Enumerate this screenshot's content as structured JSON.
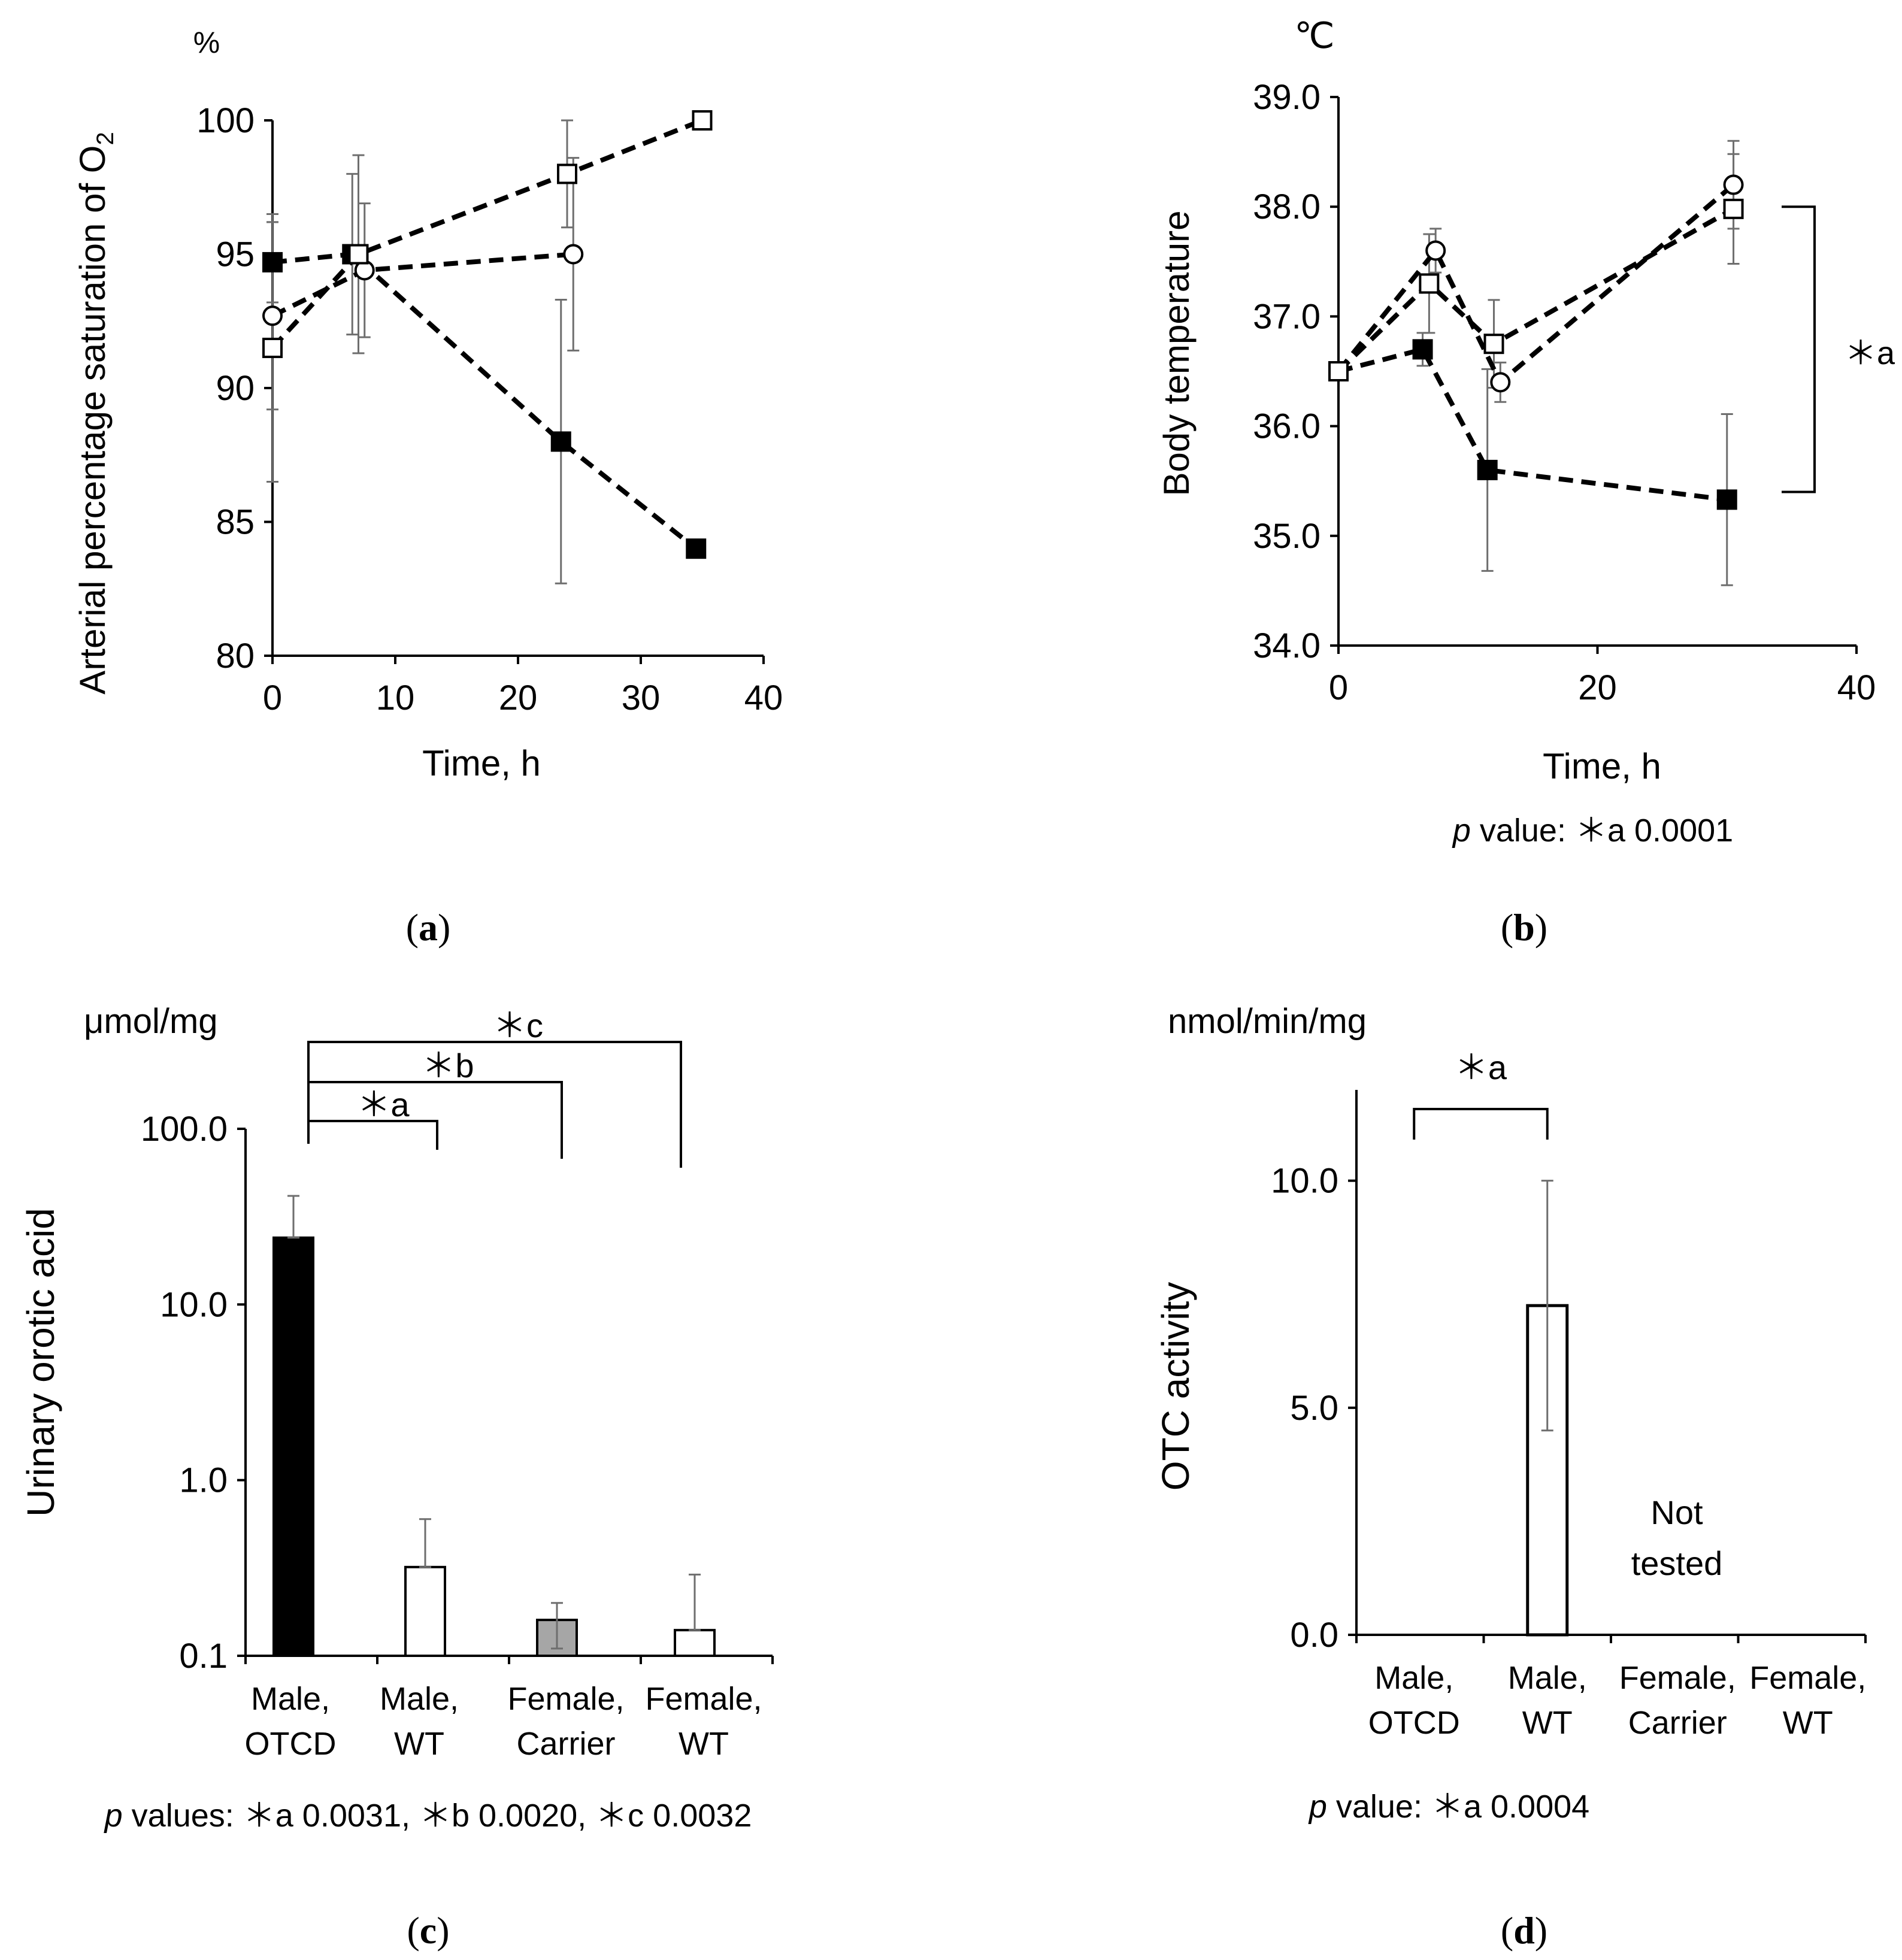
{
  "chart_data": [
    {
      "panel": "a",
      "type": "line",
      "unit": "%",
      "ylabel": "Arterial percentage saturation of O",
      "ylabel_subscript": "2",
      "xlabel": "Time, h",
      "xlim": [
        0,
        40
      ],
      "ylim": [
        80,
        100
      ],
      "xticks": [
        0,
        10,
        20,
        30,
        40
      ],
      "yticks": [
        80,
        85,
        90,
        95,
        100
      ],
      "series": [
        {
          "name": "filled-square",
          "marker": "square-filled",
          "x": [
            0,
            6.5,
            23.5,
            34.5
          ],
          "y": [
            94.7,
            95.0,
            88.0,
            84.0
          ],
          "err": [
            1.5,
            3.0,
            5.3,
            0
          ]
        },
        {
          "name": "open-circle",
          "marker": "circle-open",
          "x": [
            0,
            7.5,
            24.5
          ],
          "y": [
            92.7,
            94.4,
            95.0
          ],
          "err": [
            3.5,
            2.5,
            3.6
          ]
        },
        {
          "name": "open-square",
          "marker": "square-open",
          "x": [
            0,
            7,
            24,
            35
          ],
          "y": [
            91.5,
            95.0,
            98.0,
            100.0
          ],
          "err": [
            5.0,
            3.7,
            2.0,
            0
          ]
        }
      ],
      "caption": "(a)"
    },
    {
      "panel": "b",
      "type": "line",
      "unit": "℃",
      "ylabel": "Body temperature",
      "xlabel": "Time, h",
      "xlim": [
        0,
        40
      ],
      "ylim": [
        34.0,
        39.0
      ],
      "xticks": [
        0,
        20,
        40
      ],
      "yticks": [
        "34.0",
        "35.0",
        "36.0",
        "37.0",
        "38.0",
        "39.0"
      ],
      "series": [
        {
          "name": "filled-square",
          "marker": "square-filled",
          "x": [
            0,
            6.5,
            11.5,
            30
          ],
          "y": [
            36.5,
            36.7,
            35.6,
            35.33
          ],
          "err": [
            0,
            0.15,
            0.92,
            0.78
          ]
        },
        {
          "name": "open-circle",
          "marker": "circle-open",
          "x": [
            0,
            7.5,
            12.5,
            30.5
          ],
          "y": [
            36.5,
            37.6,
            36.4,
            38.2
          ],
          "err": [
            0,
            0.2,
            0.18,
            0.4
          ]
        },
        {
          "name": "open-square",
          "marker": "square-open",
          "x": [
            0,
            7,
            12,
            30.5
          ],
          "y": [
            36.5,
            37.3,
            36.75,
            37.98
          ],
          "err": [
            0,
            0.45,
            0.4,
            0.5
          ]
        }
      ],
      "annotation": "＊a",
      "pvalue_prefix": "p",
      "pvalue_text": " value: ＊a 0.0001",
      "caption": "(b)"
    },
    {
      "panel": "c",
      "type": "bar",
      "scale": "log",
      "unit": "μmol/mg",
      "ylabel": "Urinary orotic acid",
      "ylim": [
        0.1,
        100
      ],
      "yticks": [
        "0.1",
        "1.0",
        "10.0",
        "100.0"
      ],
      "categories": [
        [
          "Male,",
          "OTCD"
        ],
        [
          "Male,",
          "WT"
        ],
        [
          "Female,",
          "Carrier"
        ],
        [
          "Female,",
          "WT"
        ]
      ],
      "values": [
        24.0,
        0.32,
        0.16,
        0.14
      ],
      "err_upper": [
        41.5,
        0.6,
        0.2,
        0.29
      ],
      "err_lower": [
        null,
        null,
        0.11,
        null
      ],
      "fills": [
        "#000000",
        "#ffffff",
        "#a6a6a6",
        "#ffffff"
      ],
      "brackets": [
        "＊a",
        "＊b",
        "＊c"
      ],
      "pvalue_prefix": "p",
      "pvalue_text": " values: ＊a 0.0031, ＊b 0.0020, ＊c 0.0032",
      "caption": "(c)"
    },
    {
      "panel": "d",
      "type": "bar",
      "unit": "nmol/min/mg",
      "ylabel": "OTC activity",
      "ylim": [
        0,
        12
      ],
      "yticks": [
        "0.0",
        "5.0",
        "10.0"
      ],
      "categories": [
        [
          "Male,",
          "OTCD"
        ],
        [
          "Male,",
          "WT"
        ],
        [
          "Female,",
          "Carrier"
        ],
        [
          "Female,",
          "WT"
        ]
      ],
      "values": [
        0,
        7.25,
        null,
        null
      ],
      "err": [
        0,
        2.75,
        null,
        null
      ],
      "not_tested": [
        "Not",
        "tested"
      ],
      "brackets": [
        "＊a"
      ],
      "pvalue_prefix": "p",
      "pvalue_text": " value: ＊a 0.0004",
      "caption": "(d)"
    }
  ],
  "captions": {
    "a_open": "(",
    "a_letter": "a",
    "a_close": ")",
    "b_open": "(",
    "b_letter": "b",
    "b_close": ")",
    "c_open": "(",
    "c_letter": "c",
    "c_close": ")",
    "d_open": "(",
    "d_letter": "d",
    "d_close": ")"
  }
}
